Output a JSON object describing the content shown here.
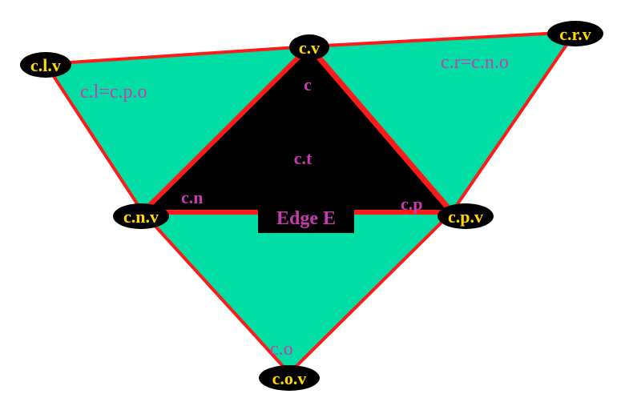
{
  "colors": {
    "face_fill": "#00dea6",
    "center_face_fill": "#000000",
    "edge_stroke": "#ff1a1a",
    "vertex_fill": "#000000",
    "vertex_text": "#ffd800",
    "corner_text": "#c83ab0"
  },
  "vertices": {
    "cv": "c.v",
    "clv": "c.l.v",
    "crv": "c.r.v",
    "cnv": "c.n.v",
    "cpv": "c.p.v",
    "cov": "c.o.v"
  },
  "corners": {
    "c": "c",
    "ct": "c.t",
    "cn": "c.n",
    "cp": "c.p",
    "co": "c.o",
    "cl": "c.l=c.p.o",
    "cr": "c.r=c.n.o"
  },
  "edge_label": "Edge E"
}
